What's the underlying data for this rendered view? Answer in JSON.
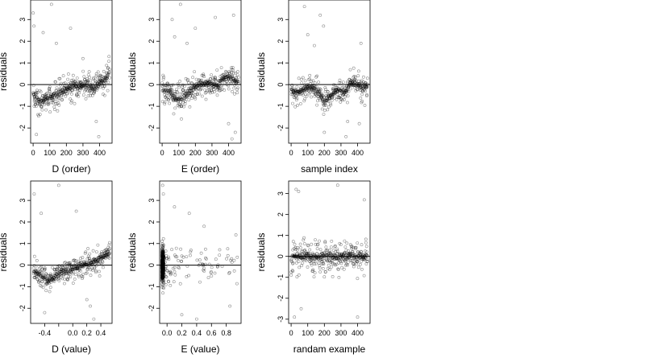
{
  "chart_data": [
    {
      "type": "scatter",
      "xlabel": "D (order)",
      "ylabel": "residuals",
      "xlim": [
        -15,
        475
      ],
      "ylim": [
        -2.7,
        3.9
      ],
      "xticks": [
        0,
        100,
        200,
        300,
        400
      ],
      "xtick_labels": [
        "0",
        "100",
        "200",
        "300",
        "400"
      ],
      "yticks": [
        -2,
        -1,
        0,
        1,
        2,
        3
      ],
      "ytick_labels": [
        "-2",
        "-1",
        "0",
        "1",
        "2",
        "3"
      ],
      "hline": 0,
      "n": 460,
      "points_trend": [
        [
          0,
          -0.4
        ],
        [
          40,
          -0.8
        ],
        [
          80,
          -0.7
        ],
        [
          120,
          -0.5
        ],
        [
          160,
          -0.4
        ],
        [
          200,
          -0.2
        ],
        [
          240,
          -0.1
        ],
        [
          280,
          -0.1
        ],
        [
          320,
          0.0
        ],
        [
          360,
          -0.2
        ],
        [
          400,
          0.1
        ],
        [
          440,
          0.3
        ],
        [
          460,
          0.6
        ]
      ],
      "noise": 0.75,
      "outliers": [
        [
          0,
          3.3
        ],
        [
          5,
          2.7
        ],
        [
          60,
          2.4
        ],
        [
          110,
          3.7
        ],
        [
          140,
          1.9
        ],
        [
          225,
          2.6
        ],
        [
          20,
          -2.3
        ],
        [
          380,
          -1.7
        ],
        [
          395,
          -2.4
        ],
        [
          300,
          1.2
        ]
      ]
    },
    {
      "type": "scatter",
      "xlabel": "E (order)",
      "ylabel": "residuals",
      "xlim": [
        -15,
        475
      ],
      "ylim": [
        -2.7,
        3.9
      ],
      "xticks": [
        0,
        100,
        200,
        300,
        400
      ],
      "xtick_labels": [
        "0",
        "100",
        "200",
        "300",
        "400"
      ],
      "yticks": [
        -2,
        -1,
        0,
        1,
        2,
        3
      ],
      "ytick_labels": [
        "-2",
        "-1",
        "0",
        "1",
        "2",
        "3"
      ],
      "hline": 0,
      "n": 460,
      "points_trend": [
        [
          0,
          -0.3
        ],
        [
          40,
          -0.3
        ],
        [
          80,
          -0.6
        ],
        [
          120,
          -0.6
        ],
        [
          160,
          -0.4
        ],
        [
          200,
          -0.1
        ],
        [
          240,
          0.0
        ],
        [
          280,
          0.1
        ],
        [
          320,
          -0.1
        ],
        [
          360,
          0.2
        ],
        [
          400,
          0.4
        ],
        [
          440,
          0.2
        ],
        [
          460,
          0.1
        ]
      ],
      "noise": 0.8,
      "outliers": [
        [
          60,
          3.0
        ],
        [
          75,
          2.2
        ],
        [
          110,
          3.7
        ],
        [
          200,
          2.6
        ],
        [
          320,
          3.1
        ],
        [
          430,
          3.2
        ],
        [
          420,
          -2.5
        ],
        [
          440,
          -2.2
        ],
        [
          400,
          -1.8
        ],
        [
          150,
          1.9
        ]
      ]
    },
    {
      "type": "scatter",
      "xlabel": "sample index",
      "ylabel": "residuals",
      "xlim": [
        -15,
        475
      ],
      "ylim": [
        -2.7,
        3.9
      ],
      "xticks": [
        0,
        100,
        200,
        300,
        400
      ],
      "xtick_labels": [
        "0",
        "100",
        "200",
        "300",
        "400"
      ],
      "yticks": [
        -2,
        -1,
        0,
        1,
        2,
        3
      ],
      "ytick_labels": [
        "-2",
        "-1",
        "0",
        "1",
        "2",
        "3"
      ],
      "hline": 0,
      "n": 460,
      "points_trend": [
        [
          0,
          -0.3
        ],
        [
          40,
          -0.4
        ],
        [
          80,
          -0.2
        ],
        [
          120,
          -0.1
        ],
        [
          160,
          -0.3
        ],
        [
          200,
          -0.8
        ],
        [
          240,
          -0.5
        ],
        [
          280,
          -0.2
        ],
        [
          320,
          -0.4
        ],
        [
          360,
          0.1
        ],
        [
          400,
          0.0
        ],
        [
          440,
          -0.2
        ],
        [
          460,
          -0.1
        ]
      ],
      "noise": 0.75,
      "outliers": [
        [
          80,
          3.6
        ],
        [
          175,
          3.2
        ],
        [
          195,
          2.7
        ],
        [
          100,
          2.3
        ],
        [
          200,
          -2.2
        ],
        [
          330,
          -2.4
        ],
        [
          340,
          -1.7
        ],
        [
          410,
          -1.8
        ],
        [
          420,
          1.9
        ],
        [
          140,
          1.8
        ]
      ]
    },
    {
      "type": "scatter",
      "xlabel": "D (value)",
      "ylabel": "residuals",
      "xlim": [
        -0.6,
        0.56
      ],
      "ylim": [
        -2.7,
        3.9
      ],
      "xticks": [
        -0.4,
        -0.2,
        0.0,
        0.2,
        0.4
      ],
      "xtick_labels": [
        "-0.4",
        "",
        "0.0",
        "0.2",
        "0.4"
      ],
      "yticks": [
        -2,
        -1,
        0,
        1,
        2,
        3
      ],
      "ytick_labels": [
        "-2",
        "-1",
        "0",
        "1",
        "2",
        "3"
      ],
      "hline": 0,
      "n": 460,
      "points_trend": [
        [
          -0.56,
          -0.3
        ],
        [
          -0.45,
          -0.5
        ],
        [
          -0.35,
          -0.7
        ],
        [
          -0.25,
          -0.5
        ],
        [
          -0.15,
          -0.3
        ],
        [
          -0.05,
          -0.3
        ],
        [
          0.05,
          -0.1
        ],
        [
          0.15,
          0.0
        ],
        [
          0.25,
          0.1
        ],
        [
          0.35,
          0.2
        ],
        [
          0.45,
          0.4
        ],
        [
          0.53,
          0.6
        ]
      ],
      "noise": 0.7,
      "outliers": [
        [
          -0.55,
          3.3
        ],
        [
          -0.45,
          2.4
        ],
        [
          -0.2,
          3.7
        ],
        [
          0.05,
          2.5
        ],
        [
          -0.4,
          -2.2
        ],
        [
          0.25,
          -1.9
        ],
        [
          0.3,
          -2.5
        ],
        [
          0.2,
          -1.6
        ]
      ]
    },
    {
      "type": "scatter",
      "xlabel": "E (value)",
      "ylabel": "residuals",
      "xlim": [
        -0.1,
        1.0
      ],
      "ylim": [
        -2.7,
        3.9
      ],
      "xticks": [
        0.0,
        0.2,
        0.4,
        0.6,
        0.8
      ],
      "xtick_labels": [
        "0.0",
        "0.2",
        "0.4",
        "0.6",
        "0.8"
      ],
      "yticks": [
        -2,
        -1,
        0,
        1,
        2,
        3
      ],
      "ytick_labels": [
        "-2",
        "-1",
        "0",
        "1",
        "2",
        "3"
      ],
      "hline": 0,
      "n": 460,
      "clustered_x": -0.07,
      "clustered_fraction": 0.75,
      "noise": 0.85,
      "outliers": [
        [
          -0.06,
          3.7
        ],
        [
          -0.05,
          3.3
        ],
        [
          0.1,
          2.7
        ],
        [
          0.3,
          2.4
        ],
        [
          0.5,
          1.8
        ],
        [
          0.93,
          1.4
        ],
        [
          0.2,
          -2.3
        ],
        [
          0.4,
          -2.5
        ],
        [
          0.85,
          -1.9
        ],
        [
          0.6,
          -0.5
        ]
      ]
    },
    {
      "type": "scatter",
      "xlabel": "randam example",
      "ylabel": "residuals",
      "xlim": [
        -15,
        475
      ],
      "ylim": [
        -3.2,
        3.6
      ],
      "xticks": [
        0,
        100,
        200,
        300,
        400
      ],
      "xtick_labels": [
        "0",
        "100",
        "200",
        "300",
        "400"
      ],
      "yticks": [
        -3,
        -2,
        -1,
        0,
        1,
        2,
        3
      ],
      "ytick_labels": [
        "-3",
        "-2",
        "-1",
        "0",
        "1",
        "2",
        "3"
      ],
      "hline": 0,
      "n": 460,
      "points_trend": [
        [
          0,
          0.0
        ],
        [
          460,
          0.0
        ]
      ],
      "noise": 1.0,
      "outliers": [
        [
          30,
          3.2
        ],
        [
          45,
          3.1
        ],
        [
          280,
          3.4
        ],
        [
          20,
          -2.9
        ],
        [
          60,
          -2.5
        ],
        [
          400,
          -2.9
        ],
        [
          440,
          2.7
        ]
      ]
    }
  ]
}
